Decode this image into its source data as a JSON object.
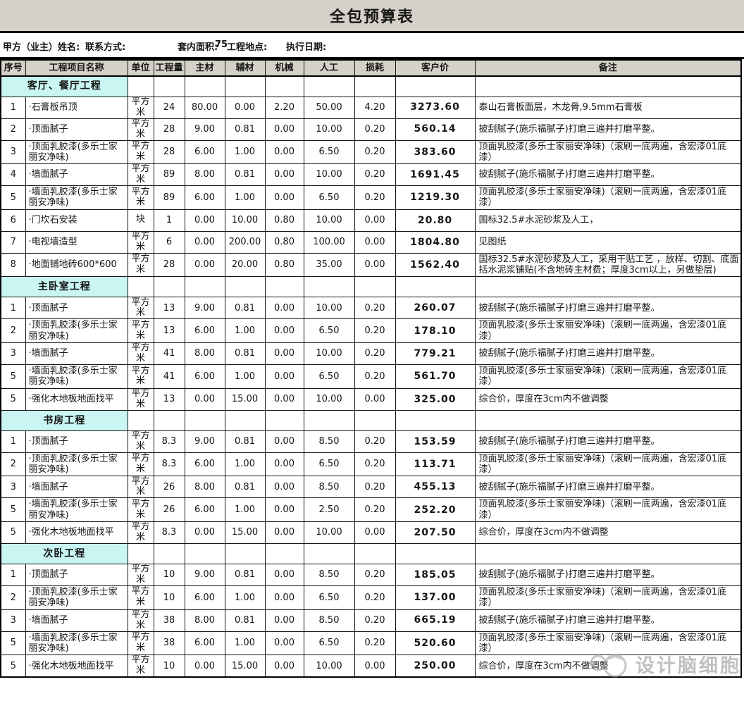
{
  "title": "全包预算表",
  "info": {
    "owner_label": "甲方（业主）姓名:",
    "contact_label": "联系方式:",
    "area_label": "套内面积:",
    "area_value": "75",
    "location_label": "工程地点:",
    "date_label": "执行日期:"
  },
  "columns": [
    "序号",
    "工程项目名称",
    "单位",
    "工程量",
    "主材",
    "辅材",
    "机械",
    "人工",
    "损耗",
    "客户价",
    "备注"
  ],
  "sections": [
    {
      "name": "客厅、餐厅工程",
      "rows": [
        {
          "seq": "1",
          "name": "·石膏板吊顶",
          "unit": "平方米",
          "qty": "24",
          "main": "80.00",
          "aux": "0.00",
          "mach": "2.20",
          "labor": "50.00",
          "loss": "4.20",
          "price": "3273.60",
          "remark": "泰山石膏板面层，木龙骨,9.5mm石膏板"
        },
        {
          "seq": "2",
          "name": "·顶面腻子",
          "unit": "平方米",
          "qty": "28",
          "main": "9.00",
          "aux": "0.81",
          "mach": "0.00",
          "labor": "10.00",
          "loss": "0.20",
          "price": "560.14",
          "remark": "披刮腻子(施乐福腻子)打磨三遍并打磨平整。"
        },
        {
          "seq": "3",
          "name": "·顶面乳胶漆(多乐士家丽安净味)",
          "unit": "平方米",
          "qty": "28",
          "main": "6.00",
          "aux": "1.00",
          "mach": "0.00",
          "labor": "6.50",
          "loss": "0.20",
          "price": "383.60",
          "remark": "顶面乳胶漆(多乐士家丽安净味)（滚刷一底两遍，含宏漆01底漆）"
        },
        {
          "seq": "4",
          "name": "·墙面腻子",
          "unit": "平方米",
          "qty": "89",
          "main": "8.00",
          "aux": "0.81",
          "mach": "0.00",
          "labor": "10.00",
          "loss": "0.20",
          "price": "1691.45",
          "remark": "披刮腻子(施乐福腻子)打磨三遍并打磨平整。"
        },
        {
          "seq": "5",
          "name": "·墙面乳胶漆(多乐士家丽安净味)",
          "unit": "平方米",
          "qty": "89",
          "main": "6.00",
          "aux": "1.00",
          "mach": "0.00",
          "labor": "6.50",
          "loss": "0.20",
          "price": "1219.30",
          "remark": "顶面乳胶漆(多乐士家丽安净味)（滚刷一底两遍，含宏漆01底漆）"
        },
        {
          "seq": "6",
          "name": "·门坎石安装",
          "unit": "块",
          "qty": "1",
          "main": "0.00",
          "aux": "10.00",
          "mach": "0.80",
          "labor": "10.00",
          "loss": "0.00",
          "price": "20.80",
          "remark": "国标32.5#水泥砂浆及人工，"
        },
        {
          "seq": "7",
          "name": "·电视墙造型",
          "unit": "平方米",
          "qty": "6",
          "main": "0.00",
          "aux": "200.00",
          "mach": "0.80",
          "labor": "100.00",
          "loss": "0.00",
          "price": "1804.80",
          "remark": "见图纸"
        },
        {
          "seq": "8",
          "name": "·地面铺地砖600*600",
          "unit": "平方米",
          "qty": "28",
          "main": "0.00",
          "aux": "20.00",
          "mach": "0.80",
          "labor": "35.00",
          "loss": "0.00",
          "price": "1562.40",
          "remark": "国标32.5#水泥砂浆及人工，采用干贴工艺 ，放样、切割、底面括水泥浆铺贴(不含地砖主材费；厚度3cm以上，另做垫层)"
        }
      ]
    },
    {
      "name": "主卧室工程",
      "rows": [
        {
          "seq": "1",
          "name": "·顶面腻子",
          "unit": "平方米",
          "qty": "13",
          "main": "9.00",
          "aux": "0.81",
          "mach": "0.00",
          "labor": "10.00",
          "loss": "0.20",
          "price": "260.07",
          "remark": "披刮腻子(施乐福腻子)打磨三遍并打磨平整。"
        },
        {
          "seq": "2",
          "name": "·顶面乳胶漆(多乐士家丽安净味)",
          "unit": "平方米",
          "qty": "13",
          "main": "6.00",
          "aux": "1.00",
          "mach": "0.00",
          "labor": "6.50",
          "loss": "0.20",
          "price": "178.10",
          "remark": "顶面乳胶漆(多乐士家丽安净味)（滚刷一底两遍，含宏漆01底漆）"
        },
        {
          "seq": "3",
          "name": "·墙面腻子",
          "unit": "平方米",
          "qty": "41",
          "main": "8.00",
          "aux": "0.81",
          "mach": "0.00",
          "labor": "10.00",
          "loss": "0.20",
          "price": "779.21",
          "remark": "披刮腻子(施乐福腻子)打磨三遍并打磨平整。"
        },
        {
          "seq": "5",
          "name": "·墙面乳胶漆(多乐士家丽安净味)",
          "unit": "平方米",
          "qty": "41",
          "main": "6.00",
          "aux": "1.00",
          "mach": "0.00",
          "labor": "6.50",
          "loss": "0.20",
          "price": "561.70",
          "remark": "顶面乳胶漆(多乐士家丽安净味)（滚刷一底两遍，含宏漆01底漆）"
        },
        {
          "seq": "5",
          "name": "·强化木地板地面找平",
          "unit": "平方米",
          "qty": "13",
          "main": "0.00",
          "aux": "15.00",
          "mach": "0.00",
          "labor": "10.00",
          "loss": "0.00",
          "price": "325.00",
          "remark": "综合价，厚度在3cm内不做调整"
        }
      ]
    },
    {
      "name": "书房工程",
      "rows": [
        {
          "seq": "1",
          "name": "·顶面腻子",
          "unit": "平方米",
          "qty": "8.3",
          "main": "9.00",
          "aux": "0.81",
          "mach": "0.00",
          "labor": "8.50",
          "loss": "0.20",
          "price": "153.59",
          "remark": "披刮腻子(施乐福腻子)打磨三遍并打磨平整。"
        },
        {
          "seq": "2",
          "name": "·顶面乳胶漆(多乐士家丽安净味)",
          "unit": "平方米",
          "qty": "8.3",
          "main": "6.00",
          "aux": "1.00",
          "mach": "0.00",
          "labor": "6.50",
          "loss": "0.20",
          "price": "113.71",
          "remark": "顶面乳胶漆(多乐士家丽安净味)（滚刷一底两遍，含宏漆01底漆）"
        },
        {
          "seq": "3",
          "name": "·墙面腻子",
          "unit": "平方米",
          "qty": "26",
          "main": "8.00",
          "aux": "0.81",
          "mach": "0.00",
          "labor": "8.50",
          "loss": "0.20",
          "price": "455.13",
          "remark": "披刮腻子(施乐福腻子)打磨三遍并打磨平整。"
        },
        {
          "seq": "5",
          "name": "·墙面乳胶漆(多乐士家丽安净味)",
          "unit": "平方米",
          "qty": "26",
          "main": "6.00",
          "aux": "1.00",
          "mach": "0.00",
          "labor": "2.50",
          "loss": "0.20",
          "price": "252.20",
          "remark": "顶面乳胶漆(多乐士家丽安净味)（滚刷一底两遍，含宏漆01底漆）"
        },
        {
          "seq": "5",
          "name": "·强化木地板地面找平",
          "unit": "平方米",
          "qty": "8.3",
          "main": "0.00",
          "aux": "15.00",
          "mach": "0.00",
          "labor": "10.00",
          "loss": "0.00",
          "price": "207.50",
          "remark": "综合价，厚度在3cm内不做调整"
        }
      ]
    },
    {
      "name": "次卧工程",
      "rows": [
        {
          "seq": "1",
          "name": "·顶面腻子",
          "unit": "平方米",
          "qty": "10",
          "main": "9.00",
          "aux": "0.81",
          "mach": "0.00",
          "labor": "8.50",
          "loss": "0.20",
          "price": "185.05",
          "remark": "披刮腻子(施乐福腻子)打磨三遍并打磨平整。"
        },
        {
          "seq": "2",
          "name": "·顶面乳胶漆(多乐士家丽安净味)",
          "unit": "平方米",
          "qty": "10",
          "main": "6.00",
          "aux": "1.00",
          "mach": "0.00",
          "labor": "6.50",
          "loss": "0.20",
          "price": "137.00",
          "remark": "顶面乳胶漆(多乐士家丽安净味)（滚刷一底两遍，含宏漆01底漆）"
        },
        {
          "seq": "3",
          "name": "·墙面腻子",
          "unit": "平方米",
          "qty": "38",
          "main": "8.00",
          "aux": "0.81",
          "mach": "0.00",
          "labor": "8.50",
          "loss": "0.20",
          "price": "665.19",
          "remark": "披刮腻子(施乐福腻子)打磨三遍并打磨平整。"
        },
        {
          "seq": "5",
          "name": "·墙面乳胶漆(多乐士家丽安净味)",
          "unit": "平方米",
          "qty": "38",
          "main": "6.00",
          "aux": "1.00",
          "mach": "0.00",
          "labor": "6.50",
          "loss": "0.20",
          "price": "520.60",
          "remark": "顶面乳胶漆(多乐士家丽安净味)（滚刷一底两遍，含宏漆01底漆）"
        },
        {
          "seq": "5",
          "name": "·强化木地板地面找平",
          "unit": "平方米",
          "qty": "10",
          "main": "0.00",
          "aux": "15.00",
          "mach": "0.00",
          "labor": "10.00",
          "loss": "0.00",
          "price": "250.00",
          "remark": "综合价，厚度在3cm内不做调整"
        }
      ]
    }
  ],
  "watermark": "设计脑细胞",
  "colors": {
    "header_beige": "#d5d1c9",
    "section_cyan": "#c9f6f2",
    "border": "#161616",
    "watermark_gray": "#8d8d8d"
  }
}
